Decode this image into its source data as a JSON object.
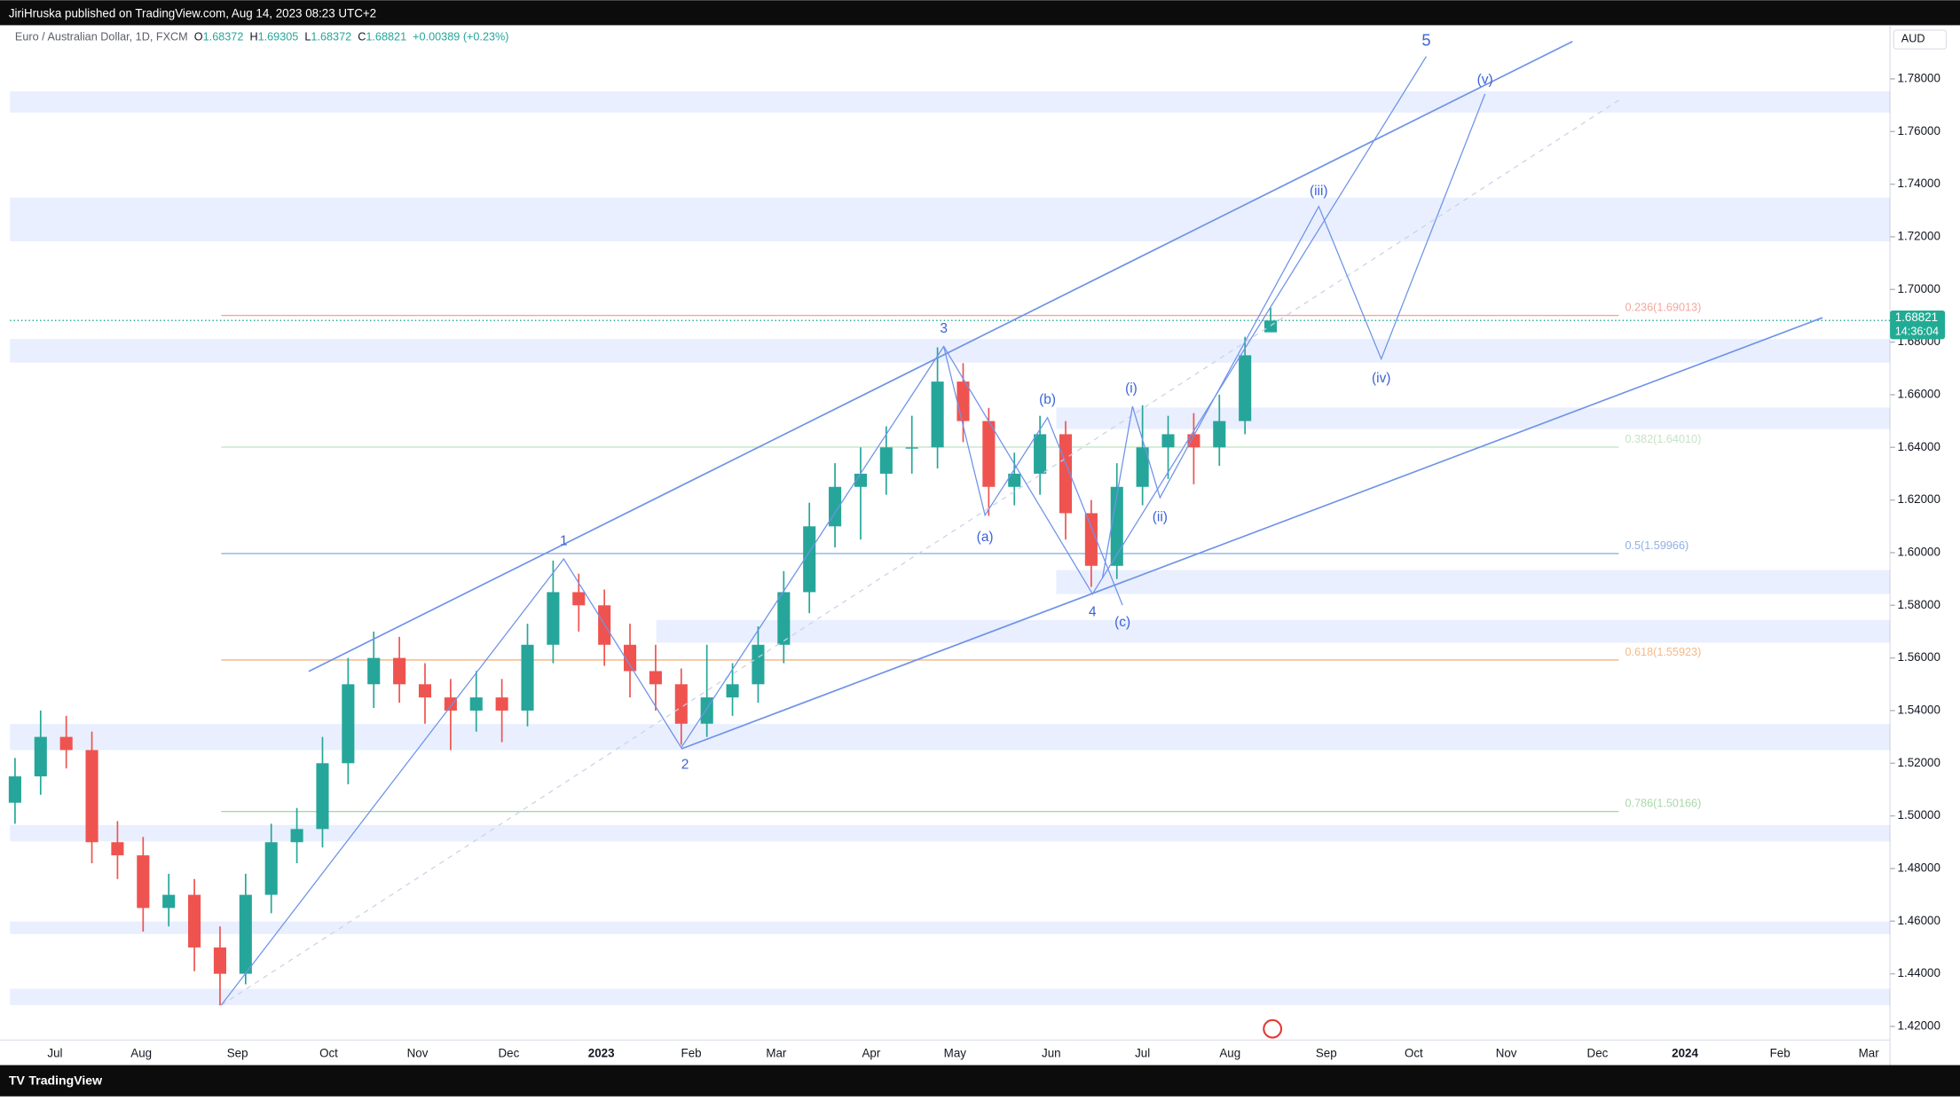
{
  "header": {
    "publisher": "JiriHruska published on TradingView.com, Aug 14, 2023 08:23 UTC+2",
    "footer": "TradingView"
  },
  "chart_data": {
    "type": "candlestick",
    "title": "Euro / Australian Dollar, 1D, FXCM",
    "ohlc_legend": [
      {
        "key": "O",
        "value": "1.68372"
      },
      {
        "key": "H",
        "value": "1.69305"
      },
      {
        "key": "L",
        "value": "1.68372"
      },
      {
        "key": "C",
        "value": "1.68821"
      }
    ],
    "change": "+0.00389 (+0.23%)",
    "currency": "AUD",
    "xaxis_labels": [
      "Jul",
      "Aug",
      "Sep",
      "Oct",
      "Nov",
      "Dec",
      "2023",
      "Feb",
      "Mar",
      "Apr",
      "May",
      "Jun",
      "Jul",
      "Aug",
      "Sep",
      "Oct",
      "Nov",
      "Dec",
      "2024",
      "Feb",
      "Mar"
    ],
    "up_color": "#26a69a",
    "down_color": "#ef5350",
    "open": [
      1.505,
      1.515,
      1.53,
      1.525,
      1.49,
      1.485,
      1.465,
      1.47,
      1.45,
      1.44,
      1.47,
      1.49,
      1.495,
      1.52,
      1.55,
      1.56,
      1.55,
      1.545,
      1.54,
      1.545,
      1.54,
      1.565,
      1.585,
      1.58,
      1.565,
      1.555,
      1.55,
      1.535,
      1.545,
      1.55,
      1.565,
      1.585,
      1.61,
      1.625,
      1.63,
      1.64,
      1.64,
      1.665,
      1.65,
      1.625,
      1.63,
      1.645,
      1.615,
      1.595,
      1.625,
      1.64,
      1.645,
      1.64,
      1.65,
      1.68372
    ],
    "high": [
      1.522,
      1.54,
      1.538,
      1.532,
      1.498,
      1.492,
      1.478,
      1.476,
      1.458,
      1.478,
      1.497,
      1.503,
      1.53,
      1.56,
      1.57,
      1.568,
      1.558,
      1.552,
      1.555,
      1.552,
      1.573,
      1.597,
      1.592,
      1.586,
      1.573,
      1.565,
      1.556,
      1.565,
      1.558,
      1.572,
      1.593,
      1.619,
      1.634,
      1.64,
      1.648,
      1.652,
      1.678,
      1.672,
      1.655,
      1.638,
      1.652,
      1.65,
      1.62,
      1.634,
      1.656,
      1.652,
      1.653,
      1.66,
      1.682,
      1.69305
    ],
    "low": [
      1.497,
      1.508,
      1.518,
      1.482,
      1.476,
      1.456,
      1.458,
      1.441,
      1.428,
      1.436,
      1.463,
      1.482,
      1.488,
      1.512,
      1.541,
      1.543,
      1.535,
      1.525,
      1.532,
      1.528,
      1.534,
      1.558,
      1.57,
      1.557,
      1.545,
      1.54,
      1.527,
      1.53,
      1.538,
      1.543,
      1.558,
      1.577,
      1.602,
      1.605,
      1.622,
      1.63,
      1.632,
      1.642,
      1.614,
      1.618,
      1.622,
      1.605,
      1.587,
      1.59,
      1.618,
      1.628,
      1.626,
      1.633,
      1.645,
      1.68372
    ],
    "close": [
      1.515,
      1.53,
      1.525,
      1.49,
      1.485,
      1.465,
      1.47,
      1.45,
      1.44,
      1.47,
      1.49,
      1.495,
      1.52,
      1.55,
      1.56,
      1.55,
      1.545,
      1.54,
      1.545,
      1.54,
      1.565,
      1.585,
      1.58,
      1.565,
      1.555,
      1.55,
      1.535,
      1.545,
      1.55,
      1.565,
      1.585,
      1.61,
      1.625,
      1.63,
      1.64,
      1.64,
      1.665,
      1.65,
      1.625,
      1.63,
      1.645,
      1.615,
      1.595,
      1.625,
      1.64,
      1.645,
      1.64,
      1.65,
      1.675,
      1.68821
    ],
    "ylim": [
      1.4148,
      1.8004
    ],
    "yticks": [
      {
        "value": 1.42,
        "label": "1.42000"
      },
      {
        "value": 1.44,
        "label": "1.44000"
      },
      {
        "value": 1.46,
        "label": "1.46000"
      },
      {
        "value": 1.48,
        "label": "1.48000"
      },
      {
        "value": 1.5,
        "label": "1.50000"
      },
      {
        "value": 1.52,
        "label": "1.52000"
      },
      {
        "value": 1.54,
        "label": "1.54000"
      },
      {
        "value": 1.56,
        "label": "1.56000"
      },
      {
        "value": 1.58,
        "label": "1.58000"
      },
      {
        "value": 1.6,
        "label": "1.60000"
      },
      {
        "value": 1.62,
        "label": "1.62000"
      },
      {
        "value": 1.64,
        "label": "1.64000"
      },
      {
        "value": 1.66,
        "label": "1.66000"
      },
      {
        "value": 1.68,
        "label": "1.68000"
      },
      {
        "value": 1.7,
        "label": "1.70000"
      },
      {
        "value": 1.72,
        "label": "1.72000"
      },
      {
        "value": 1.74,
        "label": "1.74000"
      },
      {
        "value": 1.76,
        "label": "1.76000"
      },
      {
        "value": 1.78,
        "label": "1.78000"
      }
    ],
    "last_price": {
      "value": 1.68821,
      "label": "1.68821"
    },
    "countdown": "14:36:04",
    "last_price_color": "#22ab94",
    "fib_levels": [
      {
        "value": 1.69013,
        "label": "0.236(1.69013)",
        "color": "#f4a79d"
      },
      {
        "value": 1.6401,
        "label": "0.382(1.64010)",
        "color": "#c5e3c6"
      },
      {
        "value": 1.59966,
        "label": "0.5(1.59966)",
        "color": "#8fb0e6"
      },
      {
        "value": 1.55923,
        "label": "0.618(1.55923)",
        "color": "#f6b988"
      },
      {
        "value": 1.50166,
        "label": "0.786(1.50166)",
        "color": "#a9d7ab"
      }
    ],
    "zones": [
      [
        1.7672,
        1.7753
      ],
      [
        1.7183,
        1.7349
      ],
      [
        1.6722,
        1.6812
      ],
      [
        1.647,
        1.6551
      ],
      [
        1.5843,
        1.5934
      ],
      [
        1.5658,
        1.5744
      ],
      [
        1.525,
        1.5349
      ],
      [
        1.4903,
        1.4965
      ],
      [
        1.4551,
        1.4599
      ],
      [
        1.4281,
        1.4343
      ]
    ],
    "zone_color": "rgba(41,98,255,0.1)",
    "wave_labels": [
      "1",
      "2",
      "3",
      "4",
      "5",
      "(a)",
      "(b)",
      "(c)",
      "(i)",
      "(ii)",
      "(iii)",
      "(iv)",
      "(v)"
    ],
    "wave_color": "#3b63d8"
  }
}
